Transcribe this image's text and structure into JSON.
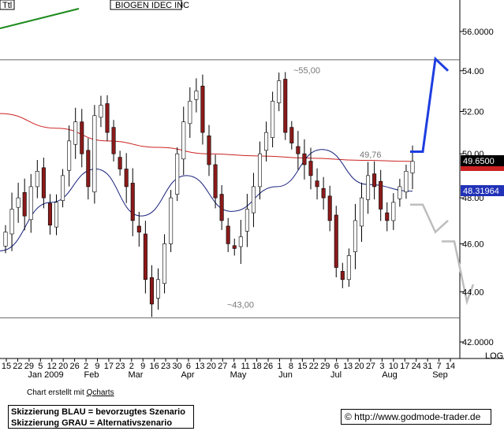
{
  "header": {
    "ticker_box": "Ttl",
    "title": "BIOGEN IDEC INC"
  },
  "chart_data": {
    "type": "candlestick",
    "title": "BIOGEN IDEC INC",
    "y_scale": "log",
    "y_axis_label": "LOG",
    "ylim": [
      41.5,
      57
    ],
    "y_ticks": [
      "42.0000",
      "44.00",
      "46.00",
      "48.00",
      "50.00",
      "52.00",
      "54.00",
      "56.0000"
    ],
    "x_tick_labels": [
      "15",
      "22",
      "29",
      "5",
      "12",
      "20",
      "26",
      "2",
      "9",
      "17",
      "23",
      "2",
      "9",
      "16",
      "23",
      "30",
      "6",
      "13",
      "20",
      "27",
      "4",
      "11",
      "18",
      "26",
      "1",
      "8",
      "15",
      "22",
      "29",
      "6",
      "13",
      "20",
      "27",
      "3",
      "10",
      "17",
      "24",
      "31",
      "7",
      "14"
    ],
    "x_month_labels": [
      "Jan 2009",
      "Feb",
      "Mar",
      "Apr",
      "May",
      "Jun",
      "Jul",
      "Aug",
      "Sep"
    ],
    "price_levels": [
      {
        "label": "~55,00",
        "value": 54.55
      },
      {
        "label": "~43,00",
        "value": 42.95
      }
    ],
    "annotation": {
      "label": "49,76",
      "value": 49.76
    },
    "current_price": "49.6500",
    "ma_value": "48.31964",
    "series": [
      {
        "name": "Price",
        "approx_closes": [
          46.5,
          47.5,
          48.0,
          47.2,
          48.5,
          49.2,
          48.0,
          46.8,
          47.8,
          49.0,
          50.6,
          51.5,
          50.0,
          48.5,
          51.8,
          52.3,
          51.0,
          50.0,
          49.3,
          48.5,
          47.0,
          46.5,
          44.5,
          43.5,
          44.5,
          46.0,
          48.0,
          50.0,
          51.5,
          52.5,
          53.0,
          51.0,
          49.5,
          48.0,
          47.0,
          46.0,
          45.8,
          46.3,
          47.5,
          48.5,
          50.0,
          51.0,
          52.5,
          53.5,
          51.0,
          50.5,
          50.0,
          49.5,
          49.0,
          48.5,
          48.0,
          47.0,
          45.0,
          44.5,
          45.5,
          47.0,
          48.0,
          49.0,
          48.5,
          47.5,
          47.0,
          47.8,
          48.5,
          49.2,
          49.65
        ]
      },
      {
        "name": "MA long",
        "approx_values": [
          51.9,
          51.2,
          50.6,
          50.3,
          50.0,
          49.9,
          49.8,
          49.7,
          49.65
        ]
      },
      {
        "name": "MA short",
        "approx_values": [
          45.7,
          47.8,
          49.3,
          47.2,
          49.0,
          47.4,
          48.5,
          50.2,
          48.6,
          48.3
        ]
      }
    ],
    "scenarios": [
      {
        "name": "blau",
        "label": "bevorzugtes Szenario",
        "points": [
          [
            0,
            50.1
          ],
          [
            1,
            50.1
          ],
          [
            2,
            54.6
          ],
          [
            3,
            54.0
          ]
        ]
      },
      {
        "name": "grau",
        "label": "Alternativszenario",
        "points": [
          [
            0,
            47.7
          ],
          [
            1,
            47.7
          ],
          [
            2,
            46.5
          ],
          [
            3,
            47.0
          ],
          [
            2.5,
            46.1
          ],
          [
            3.5,
            46.1
          ],
          [
            4.5,
            43.6
          ],
          [
            5,
            44.3
          ]
        ]
      }
    ],
    "colors": {
      "up": "#ffffff",
      "down": "#8b1a1a",
      "ma_long": "#cc2222",
      "ma_short": "#1a237e",
      "scenario_blue": "#1e3de0",
      "scenario_grey": "#bdbdbd",
      "trend": "#1b8a1b"
    }
  },
  "footer": {
    "credit_prefix": "Chart erstellt mit ",
    "credit_link": "Qcharts",
    "legend_line1": "Skizzierung BLAU = bevorzugtes Szenario",
    "legend_line2": "Skizzierung GRAU = Alternativszenario",
    "source": "© http://www.godmode-trader.de"
  }
}
